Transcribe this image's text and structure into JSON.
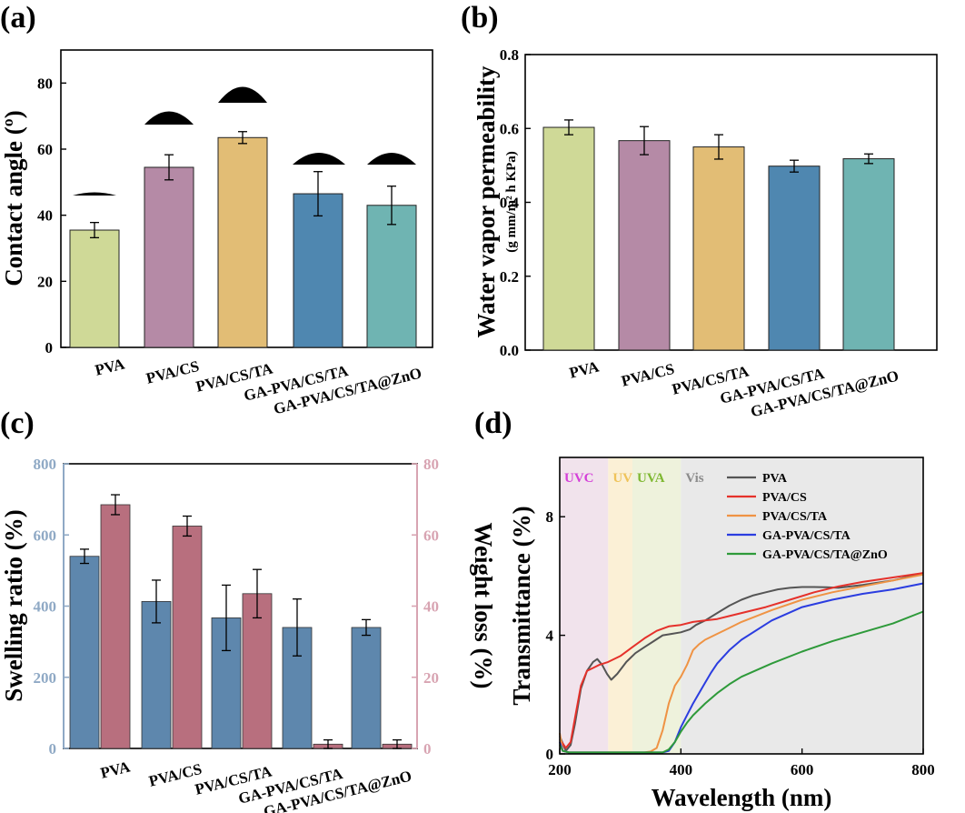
{
  "chart_data": [
    {
      "panel": "(a)",
      "type": "bar",
      "categories": [
        "PVA",
        "PVA/CS",
        "PVA/CS/TA",
        "GA-PVA/CS/TA",
        "GA-PVA/CS/TA@ZnO"
      ],
      "values": [
        35.5,
        54.5,
        63.5,
        46.5,
        43
      ],
      "errors": [
        2.3,
        3.8,
        1.8,
        6.7,
        5.8
      ],
      "colors": [
        "#cfd997",
        "#b58aa6",
        "#e2bd75",
        "#4f87b0",
        "#6fb4b2"
      ],
      "ylabel": "Contact angle (º)",
      "ylim": [
        0,
        90
      ],
      "yticks": [
        "0",
        "20",
        "40",
        "60",
        "80"
      ],
      "annotations": "droplet profile icon above each bar"
    },
    {
      "panel": "(b)",
      "type": "bar",
      "categories": [
        "PVA",
        "PVA/CS",
        "PVA/CS/TA",
        "GA-PVA/CS/TA",
        "GA-PVA/CS/TA@ZnO"
      ],
      "values": [
        0.603,
        0.567,
        0.55,
        0.498,
        0.518
      ],
      "errors": [
        0.02,
        0.038,
        0.033,
        0.016,
        0.013
      ],
      "colors": [
        "#cfd997",
        "#b58aa6",
        "#e2bd75",
        "#4f87b0",
        "#6fb4b2"
      ],
      "ylabel": "Water vapor permeability",
      "ylabel_units": "(g mm/m² h KPa)",
      "ylim": [
        0,
        0.8
      ],
      "yticks": [
        "0.0",
        "0.2",
        "0.4",
        "0.6",
        "0.8"
      ]
    },
    {
      "panel": "(c)",
      "type": "bar",
      "categories": [
        "PVA",
        "PVA/CS",
        "PVA/CS/TA",
        "GA-PVA/CS/TA",
        "GA-PVA/CS/TA@ZnO"
      ],
      "series": [
        {
          "name": "Swelling ratio (%)",
          "axis": "left",
          "values": [
            540,
            413,
            367,
            340,
            340
          ],
          "errors": [
            20,
            60,
            92,
            80,
            22
          ],
          "color": "#5e87ad"
        },
        {
          "name": "Weight loss (%)",
          "axis": "right",
          "values": [
            68.5,
            62.5,
            43.5,
            1.2,
            1.2
          ],
          "errors": [
            2.8,
            2.8,
            6.8,
            1.2,
            1.2
          ],
          "color": "#b86f7e"
        }
      ],
      "ylabel_left": "Swelling ratio (%)",
      "ylabel_right": "Weight loss (%)",
      "ylim_left": [
        0,
        800
      ],
      "ylim_right": [
        0,
        80
      ],
      "yticks_left": [
        "0",
        "200",
        "400",
        "600",
        "800"
      ],
      "yticks_right": [
        "0",
        "20",
        "40",
        "60",
        "80"
      ],
      "axis_colors": {
        "left": "#8fa9c5",
        "right": "#d8a4b2"
      }
    },
    {
      "panel": "(d)",
      "type": "line",
      "xlabel": "Wavelength (nm)",
      "ylabel": "Transmittance (%)",
      "xlim": [
        200,
        800
      ],
      "ylim": [
        0,
        10
      ],
      "xticks": [
        "200",
        "400",
        "600",
        "800"
      ],
      "yticks": [
        "0",
        "4",
        "8"
      ],
      "bands": [
        {
          "label": "UVC",
          "from": 200,
          "to": 280,
          "color": "#f1e3ec",
          "text_color": "#d43fd8"
        },
        {
          "label": "UVB",
          "from": 280,
          "to": 320,
          "color": "#fbf0d6",
          "text_color": "#efc35a"
        },
        {
          "label": "UVA",
          "from": 320,
          "to": 400,
          "color": "#eef2dc",
          "text_color": "#7fb832"
        },
        {
          "label": "Vis",
          "from": 400,
          "to": 800,
          "color": "#e9e9e9",
          "text_color": "#8c8c8c"
        }
      ],
      "series": [
        {
          "name": "PVA",
          "color": "#555555",
          "x": [
            200,
            210,
            218,
            225,
            235,
            245,
            255,
            262,
            270,
            278,
            285,
            295,
            310,
            325,
            340,
            355,
            370,
            385,
            400,
            415,
            425,
            440,
            460,
            480,
            500,
            520,
            540,
            560,
            580,
            600,
            620,
            640,
            660,
            700,
            750,
            800
          ],
          "y": [
            0.6,
            0.1,
            0.3,
            1.0,
            2.2,
            2.8,
            3.1,
            3.2,
            3.0,
            2.7,
            2.5,
            2.7,
            3.1,
            3.4,
            3.6,
            3.8,
            4.0,
            4.05,
            4.1,
            4.2,
            4.35,
            4.5,
            4.75,
            5.0,
            5.2,
            5.35,
            5.45,
            5.55,
            5.6,
            5.63,
            5.63,
            5.62,
            5.6,
            5.7,
            5.85,
            6.1
          ]
        },
        {
          "name": "PVA/CS",
          "color": "#e5312b",
          "x": [
            200,
            210,
            218,
            225,
            235,
            245,
            255,
            265,
            280,
            300,
            320,
            340,
            360,
            380,
            400,
            420,
            440,
            460,
            480,
            500,
            540,
            580,
            620,
            660,
            700,
            750,
            800
          ],
          "y": [
            0.5,
            0.2,
            0.4,
            1.2,
            2.3,
            2.8,
            2.9,
            3.0,
            3.1,
            3.3,
            3.6,
            3.9,
            4.15,
            4.3,
            4.35,
            4.45,
            4.5,
            4.55,
            4.65,
            4.75,
            4.95,
            5.2,
            5.45,
            5.65,
            5.8,
            5.95,
            6.1
          ]
        },
        {
          "name": "PVA/CS/TA",
          "color": "#ef9344",
          "x": [
            200,
            205,
            215,
            300,
            340,
            350,
            360,
            370,
            380,
            390,
            400,
            410,
            420,
            430,
            440,
            460,
            480,
            500,
            550,
            600,
            650,
            700,
            750,
            800
          ],
          "y": [
            0.7,
            0.1,
            0.05,
            0.05,
            0.05,
            0.08,
            0.2,
            0.8,
            1.7,
            2.3,
            2.6,
            3.0,
            3.5,
            3.7,
            3.85,
            4.05,
            4.25,
            4.45,
            4.85,
            5.2,
            5.45,
            5.65,
            5.85,
            6.05
          ]
        },
        {
          "name": "GA-PVA/CS/TA",
          "color": "#2b3de0",
          "x": [
            200,
            205,
            215,
            300,
            370,
            380,
            390,
            400,
            410,
            420,
            430,
            440,
            450,
            460,
            480,
            500,
            550,
            600,
            650,
            700,
            750,
            800
          ],
          "y": [
            0.4,
            0.1,
            0.05,
            0.05,
            0.05,
            0.1,
            0.4,
            0.9,
            1.3,
            1.7,
            2.05,
            2.4,
            2.75,
            3.05,
            3.5,
            3.85,
            4.5,
            4.95,
            5.2,
            5.4,
            5.55,
            5.75
          ]
        },
        {
          "name": "GA-PVA/CS/TA@ZnO",
          "color": "#2e9a3a",
          "x": [
            200,
            205,
            215,
            300,
            370,
            380,
            390,
            400,
            410,
            420,
            440,
            460,
            480,
            500,
            550,
            600,
            650,
            700,
            750,
            800
          ],
          "y": [
            0.3,
            0.1,
            0.05,
            0.05,
            0.05,
            0.15,
            0.4,
            0.75,
            1.05,
            1.3,
            1.7,
            2.05,
            2.35,
            2.6,
            3.05,
            3.45,
            3.8,
            4.1,
            4.4,
            4.8
          ]
        }
      ]
    }
  ]
}
